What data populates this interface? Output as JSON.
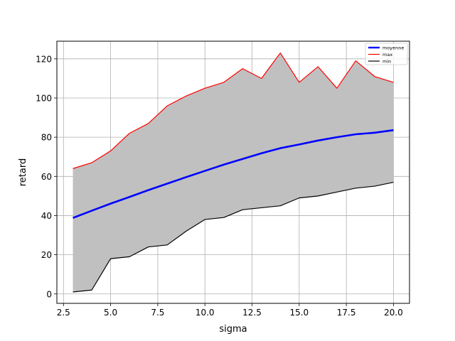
{
  "chart_data": {
    "type": "line",
    "title": "",
    "xlabel": "sigma",
    "ylabel": "retard",
    "xlim": [
      2.15,
      20.85
    ],
    "ylim": [
      -4.8,
      129
    ],
    "xticks": [
      2.5,
      5.0,
      7.5,
      10.0,
      12.5,
      15.0,
      17.5,
      20.0
    ],
    "xtick_labels": [
      "2.5",
      "5.0",
      "7.5",
      "10.0",
      "12.5",
      "15.0",
      "17.5",
      "20.0"
    ],
    "yticks": [
      0,
      20,
      40,
      60,
      80,
      100,
      120
    ],
    "ytick_labels": [
      "0",
      "20",
      "40",
      "60",
      "80",
      "100",
      "120"
    ],
    "grid": true,
    "legend_position": "top-right",
    "fill_between": {
      "lower": "min",
      "upper": "max",
      "color": "#c0c0c0"
    },
    "x": [
      3,
      4,
      5,
      6,
      7,
      8,
      9,
      10,
      11,
      12,
      13,
      14,
      15,
      16,
      17,
      18,
      19,
      20
    ],
    "series": [
      {
        "name": "moyenne",
        "color": "#0000ff",
        "values": [
          38.8,
          42.5,
          46.1,
          49.5,
          53.0,
          56.3,
          59.6,
          62.8,
          66.0,
          68.9,
          71.8,
          74.4,
          76.3,
          78.3,
          80.0,
          81.5,
          82.3,
          83.6
        ]
      },
      {
        "name": "max",
        "color": "#ff0000",
        "values": [
          64,
          67,
          73,
          82,
          87,
          96,
          101,
          105,
          108,
          115,
          110,
          123,
          108,
          116,
          105,
          119,
          111,
          108
        ]
      },
      {
        "name": "min",
        "color": "#000000",
        "values": [
          1,
          2,
          18,
          19,
          24,
          25,
          32,
          38,
          39,
          43,
          44,
          45,
          49,
          50,
          52,
          54,
          55,
          57
        ]
      }
    ]
  }
}
